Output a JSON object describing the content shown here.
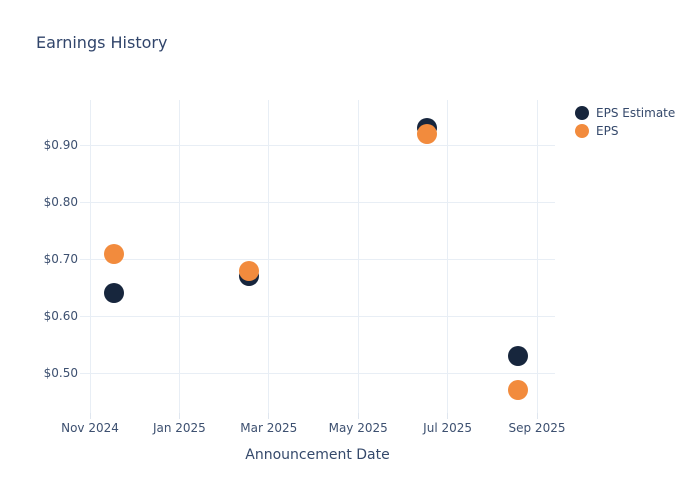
{
  "chart_data": {
    "type": "scatter",
    "title": "Earnings History",
    "xlabel": "Announcement Date",
    "ylabel": "",
    "grid": true,
    "legend_position": "outside-top-right",
    "ylim": [
      0.43,
      0.98
    ],
    "y_ticks": [
      {
        "label": "$0.50",
        "value": 0.5
      },
      {
        "label": "$0.60",
        "value": 0.6
      },
      {
        "label": "$0.70",
        "value": 0.7
      },
      {
        "label": "$0.80",
        "value": 0.8
      },
      {
        "label": "$0.90",
        "value": 0.9
      }
    ],
    "x_ticks": [
      {
        "label": "Nov 2024",
        "month_offset": 0
      },
      {
        "label": "Jan 2025",
        "month_offset": 2
      },
      {
        "label": "Mar 2025",
        "month_offset": 4
      },
      {
        "label": "May 2025",
        "month_offset": 6
      },
      {
        "label": "Jul 2025",
        "month_offset": 8
      },
      {
        "label": "Sep 2025",
        "month_offset": 10
      }
    ],
    "series": [
      {
        "name": "EPS Estimate",
        "color": "#17263d",
        "points": [
          {
            "date": "2024-11-17",
            "value": 0.64
          },
          {
            "date": "2025-02-18",
            "value": 0.67
          },
          {
            "date": "2025-06-17",
            "value": 0.93
          },
          {
            "date": "2025-08-18",
            "value": 0.53
          }
        ]
      },
      {
        "name": "EPS",
        "color": "#f28b3d",
        "points": [
          {
            "date": "2024-11-17",
            "value": 0.71
          },
          {
            "date": "2025-02-18",
            "value": 0.68
          },
          {
            "date": "2025-06-17",
            "value": 0.92
          },
          {
            "date": "2025-08-18",
            "value": 0.47
          }
        ]
      }
    ]
  }
}
